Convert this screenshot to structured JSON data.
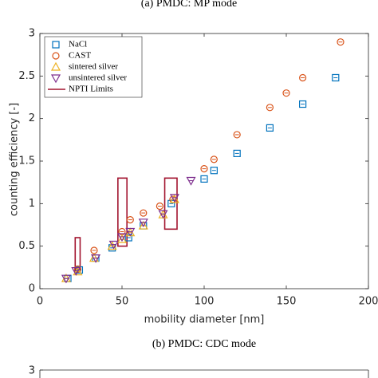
{
  "chart_data": {
    "type": "scatter",
    "title": "(a) PMDC: MP mode",
    "xlabel": "mobility diameter [nm]",
    "ylabel": "counting efficiency [-]",
    "xlim": [
      0,
      200
    ],
    "xticks": [
      0,
      50,
      100,
      150,
      200
    ],
    "ylim": [
      0,
      3
    ],
    "yticks": [
      0,
      0.5,
      1,
      1.5,
      2,
      2.5,
      3
    ],
    "legend": "upper left",
    "series": [
      {
        "name": "NaCl",
        "color": "#0072bd",
        "marker": "square",
        "x": [
          17,
          24,
          34,
          44,
          54,
          63,
          80,
          100,
          106,
          120,
          140,
          160,
          180
        ],
        "values": [
          0.12,
          0.22,
          0.36,
          0.48,
          0.6,
          0.74,
          1.0,
          1.29,
          1.39,
          1.59,
          1.89,
          2.17,
          2.48
        ]
      },
      {
        "name": "CAST",
        "color": "#d95319",
        "marker": "circle",
        "x": [
          23,
          33,
          50,
          55,
          63,
          73,
          81,
          100,
          106,
          120,
          140,
          150,
          160,
          183
        ],
        "values": [
          0.23,
          0.45,
          0.67,
          0.81,
          0.89,
          0.97,
          1.05,
          1.41,
          1.52,
          1.81,
          2.13,
          2.3,
          2.48,
          2.9
        ]
      },
      {
        "name": "sintered silver",
        "color": "#edb120",
        "marker": "triangle-up",
        "x": [
          16,
          23,
          33,
          44,
          50,
          55,
          63,
          75,
          82
        ],
        "values": [
          0.12,
          0.2,
          0.36,
          0.5,
          0.58,
          0.66,
          0.74,
          0.87,
          1.05
        ]
      },
      {
        "name": "unsintered silver",
        "color": "#7e2f8e",
        "marker": "triangle-down",
        "x": [
          16,
          22,
          34,
          45,
          50,
          55,
          63,
          75,
          82,
          92
        ],
        "values": [
          0.12,
          0.21,
          0.36,
          0.52,
          0.61,
          0.67,
          0.78,
          0.88,
          1.07,
          1.27
        ]
      }
    ],
    "limits": {
      "name": "NPTI Limits",
      "color": "#a2142f",
      "boxes": [
        {
          "x": [
            21.5,
            24.5
          ],
          "y": [
            0.2,
            0.6
          ]
        },
        {
          "x": [
            47.5,
            53
          ],
          "y": [
            0.5,
            1.3
          ]
        },
        {
          "x": [
            76,
            83.5
          ],
          "y": [
            0.7,
            1.3
          ]
        }
      ]
    },
    "next_panel": {
      "title": "(b) PMDC: CDC mode",
      "ytick": 3
    }
  }
}
